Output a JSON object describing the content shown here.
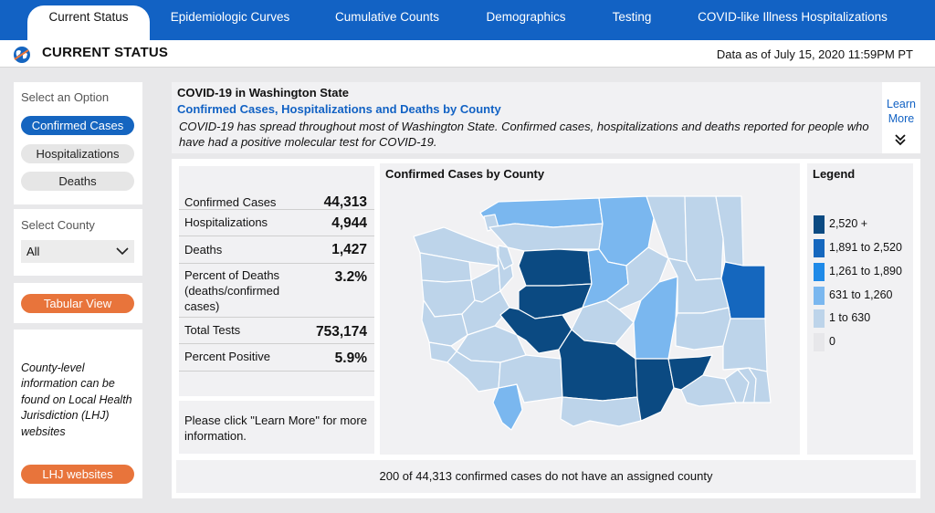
{
  "nav": {
    "tabs": [
      {
        "label": "Current Status"
      },
      {
        "label": "Epidemiologic Curves"
      },
      {
        "label": "Cumulative Counts"
      },
      {
        "label": "Demographics"
      },
      {
        "label": "Testing"
      },
      {
        "label": "COVID-like Illness Hospitalizations"
      }
    ]
  },
  "header": {
    "title": "CURRENT STATUS",
    "data_as_of": "Data as of July 15, 2020 11:59PM PT",
    "icon": "globe-icon"
  },
  "sidebar": {
    "option_label": "Select an Option",
    "options": [
      {
        "label": "Confirmed Cases",
        "selected": true
      },
      {
        "label": "Hospitalizations",
        "selected": false
      },
      {
        "label": "Deaths",
        "selected": false
      }
    ],
    "county_label": "Select County",
    "county_value": "All",
    "tabular_button": "Tabular View",
    "lhj_note": "County-level information can be found on Local Health Jurisdiction (LHJ) websites",
    "lhj_button": "LHJ websites"
  },
  "info": {
    "title": "COVID-19 in Washington State",
    "subtitle": "Confirmed Cases, Hospitalizations and Deaths by County",
    "description": "COVID-19 has spread throughout most of Washington State. Confirmed cases, hospitalizations and deaths reported for people who have had a positive molecular test for COVID-19.",
    "learn_more": "Learn More"
  },
  "stats": [
    {
      "label": "Confirmed Cases",
      "value": "44,313"
    },
    {
      "label": "Hospitalizations",
      "value": "4,944"
    },
    {
      "label": "Deaths",
      "value": "1,427"
    },
    {
      "label": "Percent of Deaths (deaths/confirmed cases)",
      "value": "3.2%"
    },
    {
      "label": "Total Tests",
      "value": "753,174"
    },
    {
      "label": "Percent Positive",
      "value": "5.9%"
    }
  ],
  "note": "Please click \"Learn More\" for more information.",
  "map": {
    "title": "Confirmed Cases by County"
  },
  "legend": {
    "title": "Legend",
    "items": [
      {
        "label": "2,520 +",
        "color": "#0b4a82"
      },
      {
        "label": "1,891 to 2,520",
        "color": "#1567be"
      },
      {
        "label": "1,261 to 1,890",
        "color": "#1f8ae8"
      },
      {
        "label": "631 to 1,260",
        "color": "#7ab7ef"
      },
      {
        "label": "1 to 630",
        "color": "#bdd4ea"
      },
      {
        "label": "0",
        "color": "#e7e7ea"
      }
    ]
  },
  "footer": "200 of 44,313 confirmed cases do not have an assigned county",
  "colors": {
    "nav_bg": "#1262c4",
    "primary": "#1565c0",
    "accent_orange": "#e8743b",
    "link": "#1262c4"
  }
}
